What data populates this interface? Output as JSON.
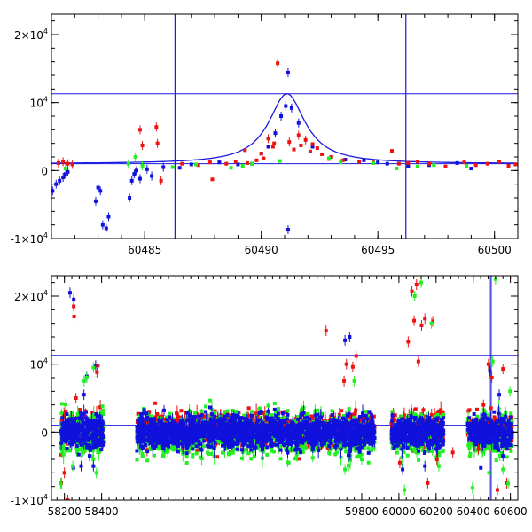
{
  "chart_data": [
    {
      "type": "scatter",
      "panel": "top",
      "xlim": [
        60481,
        60501
      ],
      "ylim": [
        -10000,
        23000
      ],
      "x_ticks": [
        60485,
        60490,
        60495,
        60500
      ],
      "x_tick_labels": [
        "60485",
        "60490",
        "60495",
        "60500"
      ],
      "y_ticks": [
        -10000,
        0,
        10000,
        20000
      ],
      "y_tick_labels": [
        {
          "base": "-1×10",
          "exp": "4"
        },
        {
          "base": "0",
          "exp": ""
        },
        {
          "base": "10",
          "exp": "4"
        },
        {
          "base": "2×10",
          "exp": "4"
        }
      ],
      "hlines": [
        11300,
        1000
      ],
      "vlines": [
        60486.3,
        60496.2
      ],
      "colors": {
        "g": "#22ee22",
        "r": "#ee1111",
        "i": "#1111dd",
        "model": "#1a1ae0"
      },
      "model_curve": {
        "baseline": 1000,
        "peak_time": 60491.1,
        "peak_flux": 11300,
        "width_days": 0.95
      },
      "series": [
        {
          "color": "i",
          "points": [
            [
              60481.05,
              -3000
            ],
            [
              60481.2,
              -2000
            ],
            [
              60481.35,
              -1500
            ],
            [
              60481.5,
              -1000
            ],
            [
              60481.6,
              -500
            ],
            [
              60481.7,
              -200
            ],
            [
              60482.9,
              -4500
            ],
            [
              60483.0,
              -2500
            ],
            [
              60483.1,
              -3000
            ],
            [
              60483.2,
              -8000
            ],
            [
              60483.35,
              -8500
            ],
            [
              60483.45,
              -6800
            ],
            [
              60484.35,
              -4000
            ],
            [
              60484.45,
              -1500
            ],
            [
              60484.55,
              -500
            ],
            [
              60484.65,
              0
            ],
            [
              60484.8,
              -1200
            ],
            [
              60485.1,
              200
            ],
            [
              60485.3,
              -800
            ],
            [
              60485.8,
              500
            ],
            [
              60486.5,
              400
            ],
            [
              60487.0,
              900
            ],
            [
              60488.2,
              1200
            ],
            [
              60489.0,
              900
            ],
            [
              60489.6,
              1000
            ],
            [
              60490.0,
              2500
            ],
            [
              60490.3,
              3500
            ],
            [
              60490.6,
              5500
            ],
            [
              60490.85,
              8000
            ],
            [
              60491.05,
              9500
            ],
            [
              60491.15,
              14400
            ],
            [
              60491.15,
              -8700
            ],
            [
              60491.3,
              9200
            ],
            [
              60491.6,
              7000
            ],
            [
              60492.2,
              3500
            ],
            [
              60493.0,
              2000
            ],
            [
              60493.6,
              1600
            ],
            [
              60494.4,
              1500
            ],
            [
              60495.0,
              1200
            ],
            [
              60495.4,
              1000
            ],
            [
              60496.3,
              700
            ],
            [
              60497.2,
              800
            ],
            [
              60498.4,
              1100
            ],
            [
              60499.0,
              300
            ]
          ]
        },
        {
          "color": "r",
          "points": [
            [
              60481.3,
              1100
            ],
            [
              60481.5,
              1300
            ],
            [
              60481.7,
              1000
            ],
            [
              60481.9,
              900
            ],
            [
              60484.8,
              6000
            ],
            [
              60484.9,
              3700
            ],
            [
              60485.5,
              6400
            ],
            [
              60485.55,
              4000
            ],
            [
              60485.7,
              -1500
            ],
            [
              60486.6,
              1000
            ],
            [
              60487.3,
              800
            ],
            [
              60487.8,
              1200
            ],
            [
              60487.9,
              -1300
            ],
            [
              60488.5,
              1000
            ],
            [
              60488.9,
              1300
            ],
            [
              60489.3,
              3000
            ],
            [
              60489.4,
              1100
            ],
            [
              60489.8,
              1500
            ],
            [
              60490.0,
              2500
            ],
            [
              60490.1,
              1800
            ],
            [
              60490.3,
              4700
            ],
            [
              60490.5,
              3500
            ],
            [
              60490.55,
              4000
            ],
            [
              60490.7,
              15800
            ],
            [
              60491.2,
              4200
            ],
            [
              60491.4,
              3100
            ],
            [
              60491.6,
              5200
            ],
            [
              60491.7,
              3700
            ],
            [
              60491.9,
              4500
            ],
            [
              60492.1,
              2800
            ],
            [
              60492.2,
              3900
            ],
            [
              60492.4,
              3300
            ],
            [
              60492.6,
              2400
            ],
            [
              60492.9,
              1700
            ],
            [
              60493.0,
              2000
            ],
            [
              60493.5,
              1500
            ],
            [
              60494.2,
              1300
            ],
            [
              60494.8,
              1200
            ],
            [
              60495.6,
              2900
            ],
            [
              60495.9,
              1000
            ],
            [
              60496.3,
              1100
            ],
            [
              60496.7,
              1300
            ],
            [
              60497.2,
              1000
            ],
            [
              60497.9,
              600
            ],
            [
              60498.7,
              1200
            ],
            [
              60499.2,
              800
            ],
            [
              60499.7,
              1000
            ],
            [
              60500.2,
              1300
            ],
            [
              60500.6,
              700
            ],
            [
              60500.9,
              900
            ]
          ]
        },
        {
          "color": "g",
          "points": [
            [
              60481.6,
              300
            ],
            [
              60484.3,
              1000
            ],
            [
              60484.6,
              2000
            ],
            [
              60484.9,
              700
            ],
            [
              60486.2,
              500
            ],
            [
              60487.2,
              900
            ],
            [
              60488.7,
              400
            ],
            [
              60489.2,
              700
            ],
            [
              60489.6,
              1000
            ],
            [
              60490.8,
              1400
            ],
            [
              60492.9,
              1800
            ],
            [
              60493.4,
              1200
            ],
            [
              60494.8,
              1100
            ],
            [
              60495.8,
              300
            ],
            [
              60496.7,
              600
            ],
            [
              60497.4,
              800
            ],
            [
              60498.8,
              700
            ]
          ]
        }
      ]
    },
    {
      "type": "scatter",
      "panel": "bottom",
      "xlim": [
        58130,
        60640
      ],
      "ylim": [
        -10000,
        23000
      ],
      "x_ticks": [
        58200,
        58400,
        59800,
        60000,
        60200,
        60400,
        60600
      ],
      "x_tick_labels": [
        "58200",
        "58400",
        "59800",
        "60000",
        "60200",
        "60400",
        "60600"
      ],
      "axis_break_x": 58560,
      "y_ticks": [
        -10000,
        0,
        10000,
        20000
      ],
      "y_tick_labels": [
        {
          "base": "-1×10",
          "exp": "4"
        },
        {
          "base": "0",
          "exp": ""
        },
        {
          "base": "10",
          "exp": "4"
        },
        {
          "base": "2×10",
          "exp": "4"
        }
      ],
      "hlines": [
        11300,
        1000
      ],
      "vlines": [
        60486.3,
        60496.2
      ],
      "colors": {
        "g": "#22ee22",
        "r": "#ee1111",
        "i": "#1111dd"
      },
      "seasons": [
        [
          58180,
          58410
        ],
        [
          58590,
          59870
        ],
        [
          59960,
          60240
        ],
        [
          60370,
          60610
        ]
      ],
      "outliers": [
        {
          "color": "i",
          "points": [
            [
              58230,
              20500
            ],
            [
              58250,
              19500
            ],
            [
              58290,
              -5000
            ],
            [
              58305,
              5500
            ],
            [
              58320,
              8200
            ],
            [
              58335,
              -3500
            ],
            [
              58356,
              -5000
            ],
            [
              58368,
              9800
            ],
            [
              59710,
              13500
            ],
            [
              59735,
              14000
            ],
            [
              59805,
              2500
            ],
            [
              60020,
              -5500
            ],
            [
              60140,
              -5000
            ],
            [
              60490,
              9000
            ],
            [
              60540,
              5500
            ],
            [
              60560,
              -3500
            ]
          ]
        },
        {
          "color": "r",
          "points": [
            [
              58183,
              -7500
            ],
            [
              58200,
              -6000
            ],
            [
              58218,
              -10000
            ],
            [
              58250,
              18500
            ],
            [
              58252,
              17000
            ],
            [
              58262,
              5000
            ],
            [
              58375,
              8800
            ],
            [
              58380,
              9800
            ],
            [
              59608,
              14900
            ],
            [
              59705,
              7500
            ],
            [
              59718,
              10000
            ],
            [
              59752,
              9600
            ],
            [
              59770,
              11200
            ],
            [
              60005,
              -4500
            ],
            [
              60050,
              13300
            ],
            [
              60070,
              20700
            ],
            [
              60082,
              16400
            ],
            [
              60095,
              21700
            ],
            [
              60105,
              10400
            ],
            [
              60122,
              15700
            ],
            [
              60140,
              16700
            ],
            [
              60155,
              -7500
            ],
            [
              60182,
              16300
            ],
            [
              60205,
              -4000
            ],
            [
              60290,
              -3000
            ],
            [
              60428,
              -2500
            ],
            [
              60455,
              4000
            ],
            [
              60482,
              10000
            ],
            [
              60500,
              8000
            ],
            [
              60530,
              -8500
            ],
            [
              60560,
              9300
            ],
            [
              60580,
              -7500
            ]
          ]
        },
        {
          "color": "g",
          "points": [
            [
              58180,
              -7600
            ],
            [
              58188,
              -3000
            ],
            [
              58245,
              -5000
            ],
            [
              58306,
              7500
            ],
            [
              58320,
              8000
            ],
            [
              58356,
              9500
            ],
            [
              58372,
              -6000
            ],
            [
              59685,
              -2000
            ],
            [
              59710,
              -5500
            ],
            [
              59760,
              7500
            ],
            [
              59800,
              -4000
            ],
            [
              60030,
              -8500
            ],
            [
              60085,
              20000
            ],
            [
              60120,
              22000
            ],
            [
              60175,
              16000
            ],
            [
              60215,
              -5000
            ],
            [
              60380,
              -2000
            ],
            [
              60396,
              -8200
            ],
            [
              60485,
              -6000
            ],
            [
              60505,
              10400
            ],
            [
              60520,
              22500
            ],
            [
              60560,
              -5500
            ],
            [
              60588,
              -7600
            ],
            [
              60598,
              6000
            ]
          ]
        }
      ]
    }
  ]
}
